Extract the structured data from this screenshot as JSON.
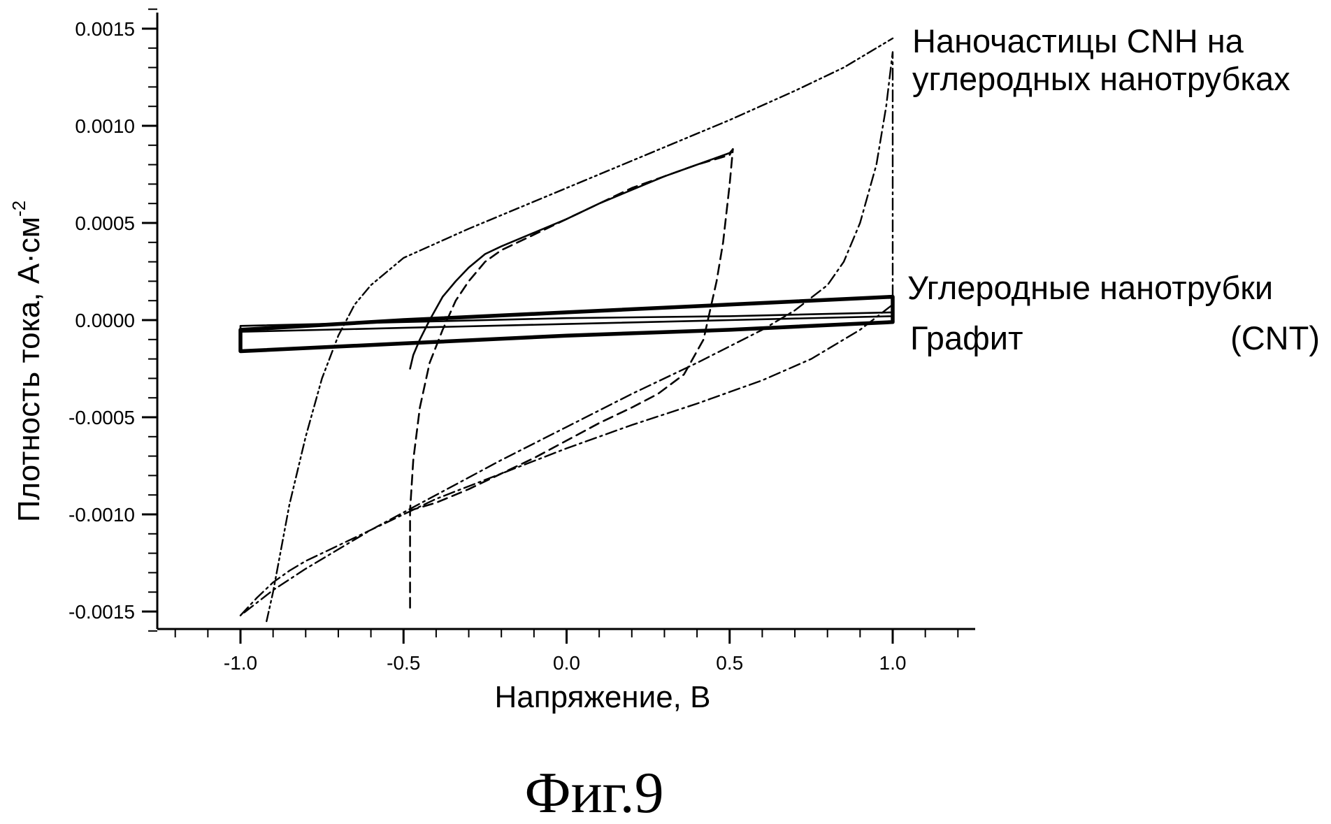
{
  "chart_data": {
    "type": "line",
    "title": "",
    "xlabel": "Напряжение, В",
    "ylabel": "Плотность тока, А·см",
    "ylabel_exponent": "-2",
    "xlim": [
      -1.25,
      1.25
    ],
    "ylim": [
      -0.0016,
      0.0016
    ],
    "x_ticks": [
      -1.0,
      -0.5,
      0.0,
      0.5,
      1.0
    ],
    "x_tick_labels": [
      "-1.0",
      "-0.5",
      "0.0",
      "0.5",
      "1.0"
    ],
    "y_ticks": [
      0.0015,
      0.001,
      0.0005,
      0.0,
      -0.0005,
      -0.001,
      -0.0015
    ],
    "y_tick_labels": [
      "0.0015",
      "0.0010",
      "0.0005",
      "0.0000",
      "-0.0005",
      "-0.0010",
      "-0.0015"
    ],
    "grid": false,
    "legend": "none",
    "annotations": [
      {
        "id": "cnh",
        "lines": [
          "Наночастицы CNH на",
          "углеродных нанотрубках"
        ]
      },
      {
        "id": "cnt",
        "lines": [
          "Углеродные нанотрубки",
          "(CNT)"
        ]
      },
      {
        "id": "graphite",
        "lines": [
          "Графит"
        ]
      }
    ],
    "series": [
      {
        "style": "dashdot",
        "x": [
          -1.0,
          -0.95,
          -0.9,
          -0.85,
          -0.8,
          -0.7,
          -0.6,
          -0.5,
          -0.4,
          -0.2,
          0.0,
          0.2,
          0.4,
          0.6,
          0.75,
          0.9,
          1.0,
          1.0,
          0.98,
          0.95,
          0.9,
          0.85,
          0.8,
          0.7,
          0.6,
          0.4,
          0.2,
          0.0,
          -0.2,
          -0.4,
          -0.6,
          -0.8,
          -0.9,
          -1.0
        ],
        "y": [
          -0.00152,
          -0.00143,
          -0.00135,
          -0.00129,
          -0.00124,
          -0.00116,
          -0.00108,
          -0.001,
          -0.00092,
          -0.00079,
          -0.00066,
          -0.00054,
          -0.00043,
          -0.00031,
          -0.0002,
          -5e-05,
          8e-05,
          0.00138,
          0.0011,
          0.0008,
          0.0005,
          0.0003,
          0.00018,
          5e-05,
          -5e-05,
          -0.00022,
          -0.00038,
          -0.00055,
          -0.00072,
          -0.0009,
          -0.00108,
          -0.00128,
          -0.00139,
          -0.00152
        ]
      },
      {
        "style": "dashdotdot",
        "x": [
          -0.92,
          -0.9,
          -0.85,
          -0.8,
          -0.75,
          -0.7,
          -0.65,
          -0.6,
          -0.5,
          -0.3,
          -0.1,
          0.1,
          0.3,
          0.5,
          0.7,
          0.85,
          1.0
        ],
        "y": [
          -0.00155,
          -0.0014,
          -0.00095,
          -0.0006,
          -0.0003,
          -8e-05,
          8e-05,
          0.00018,
          0.00032,
          0.00047,
          0.00061,
          0.00075,
          0.00089,
          0.00103,
          0.00118,
          0.0013,
          0.00145
        ]
      },
      {
        "style": "dashed",
        "x": [
          -0.48,
          -0.48,
          -0.47,
          -0.45,
          -0.42,
          -0.38,
          -0.34,
          -0.3,
          -0.25,
          -0.2,
          -0.1,
          0.0,
          0.1,
          0.2,
          0.3,
          0.4,
          0.5,
          0.51,
          0.5,
          0.48,
          0.46,
          0.42,
          0.36,
          0.28,
          0.2,
          0.1,
          0.0,
          -0.1,
          -0.2,
          -0.3,
          -0.4,
          -0.48
        ],
        "y": [
          -0.00148,
          -0.00098,
          -0.00072,
          -0.00045,
          -0.00022,
          -5e-05,
          0.0001,
          0.0002,
          0.0003,
          0.00036,
          0.00044,
          0.00052,
          0.0006,
          0.00068,
          0.00074,
          0.0008,
          0.00085,
          0.00088,
          0.0007,
          0.0004,
          0.0002,
          -0.0001,
          -0.00028,
          -0.00038,
          -0.00045,
          -0.00053,
          -0.00062,
          -0.00071,
          -0.00079,
          -0.00087,
          -0.00094,
          -0.00098
        ]
      },
      {
        "style": "solid",
        "x": [
          -0.48,
          -0.47,
          -0.45,
          -0.42,
          -0.38,
          -0.34,
          -0.3,
          -0.25,
          -0.2,
          -0.1,
          0.0,
          0.1,
          0.2,
          0.3,
          0.4,
          0.5,
          0.51
        ],
        "y": [
          -0.00025,
          -0.00018,
          -0.0001,
          0.0,
          0.00012,
          0.0002,
          0.00027,
          0.00034,
          0.00038,
          0.00045,
          0.00052,
          0.0006,
          0.00067,
          0.00074,
          0.0008,
          0.00086,
          0.00088
        ]
      },
      {
        "name": "Углеродные нанотрубки (CNT)",
        "style": "solid-thick",
        "x": [
          -1.0,
          -0.5,
          0.0,
          0.5,
          1.0,
          1.0,
          0.5,
          0.0,
          -0.5,
          -1.0,
          -1.0
        ],
        "y": [
          -5e-05,
          0.0,
          4e-05,
          8e-05,
          0.00012,
          -1e-05,
          -5e-05,
          -8e-05,
          -0.00012,
          -0.00016,
          -5e-05
        ]
      },
      {
        "name": "Графит",
        "style": "solid",
        "x": [
          -1.0,
          -0.5,
          0.0,
          0.5,
          1.0,
          1.0,
          0.5,
          0.0,
          -0.5,
          -1.0,
          -1.0
        ],
        "y": [
          -3e-05,
          -1e-05,
          1e-05,
          2e-05,
          4e-05,
          2e-05,
          0.0,
          -2e-05,
          -4e-05,
          -6e-05,
          -3e-05
        ]
      }
    ]
  },
  "figure": {
    "caption": "Фиг.9"
  }
}
